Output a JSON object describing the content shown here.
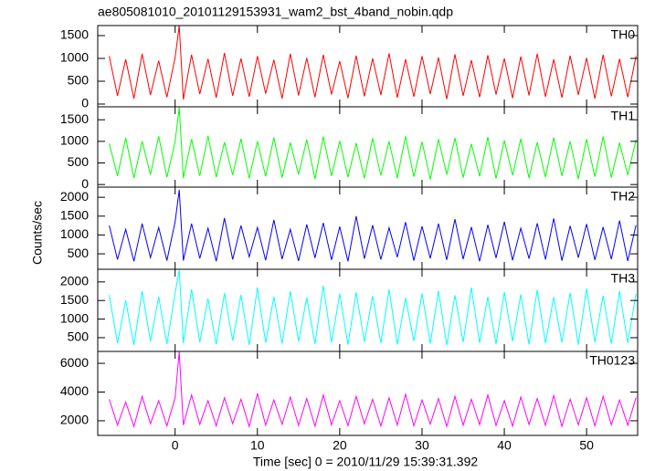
{
  "chart_data": {
    "type": "line",
    "title": "ae805081010_20101129153931_wam2_bst_4band_nobin.qdp",
    "xlabel": "Time [sec] 0 = 2010/11/29 15:39:31.392",
    "ylabel": "Counts/sec",
    "xlim": [
      -9.4,
      56.2
    ],
    "xticks": [
      0,
      10,
      20,
      30,
      40,
      50
    ],
    "x": [
      -8,
      -7,
      -6,
      -5,
      -4,
      -3,
      -2,
      -1,
      0,
      0.5,
      1,
      2,
      3,
      4,
      5,
      6,
      7,
      8,
      9,
      10,
      11,
      12,
      13,
      14,
      15,
      16,
      17,
      18,
      19,
      20,
      21,
      22,
      23,
      24,
      25,
      26,
      27,
      28,
      29,
      30,
      31,
      32,
      33,
      34,
      35,
      36,
      37,
      38,
      39,
      40,
      41,
      42,
      43,
      44,
      45,
      46,
      47,
      48,
      49,
      50,
      51,
      52,
      53,
      54,
      55,
      56
    ],
    "series": [
      {
        "name": "TH0",
        "color": "#ff0000",
        "ylim": [
          -60,
          1720
        ],
        "yticks": [
          0,
          500,
          1000,
          1500
        ],
        "values": [
          1050,
          180,
          980,
          120,
          1100,
          200,
          950,
          150,
          1020,
          1720,
          100,
          1080,
          220,
          990,
          140,
          1120,
          180,
          1000,
          160,
          1050,
          230,
          970,
          120,
          1100,
          190,
          1010,
          150,
          1080,
          210,
          940,
          130,
          1060,
          170,
          1000,
          200,
          1110,
          140,
          980,
          160,
          1050,
          220,
          1020,
          110,
          1090,
          180,
          960,
          150,
          1070,
          210,
          1000,
          130,
          1040,
          190,
          1100,
          160,
          980,
          140,
          1060,
          200,
          1010,
          120,
          1080,
          170,
          990,
          150,
          1050
        ]
      },
      {
        "name": "TH1",
        "color": "#00ff00",
        "ylim": [
          -60,
          1800
        ],
        "yticks": [
          0,
          500,
          1000,
          1500
        ],
        "values": [
          950,
          200,
          1080,
          150,
          1000,
          230,
          1120,
          170,
          990,
          1790,
          150,
          1050,
          200,
          1130,
          170,
          980,
          220,
          1060,
          140,
          1000,
          190,
          1090,
          160,
          970,
          230,
          1040,
          130,
          1110,
          200,
          1010,
          170,
          960,
          140,
          1070,
          210,
          1000,
          150,
          1120,
          180,
          990,
          120,
          1050,
          230,
          1080,
          160,
          940,
          190,
          1100,
          140,
          1020,
          210,
          1060,
          150,
          980,
          170,
          1090,
          200,
          1000,
          130,
          1050,
          180,
          1110,
          160,
          970,
          220,
          1030
        ]
      },
      {
        "name": "TH2",
        "color": "#0000ff",
        "ylim": [
          90,
          2270
        ],
        "yticks": [
          500,
          1000,
          1500,
          2000
        ],
        "values": [
          1250,
          350,
          1150,
          300,
          1300,
          400,
          1200,
          320,
          1350,
          2200,
          320,
          1300,
          380,
          1180,
          300,
          1450,
          350,
          1250,
          420,
          1200,
          330,
          1400,
          360,
          1150,
          310,
          1280,
          390,
          1320,
          340,
          1220,
          300,
          1500,
          370,
          1260,
          350,
          1190,
          410,
          1340,
          320,
          1230,
          380,
          1300,
          340,
          1420,
          360,
          1210,
          300,
          1270,
          390,
          1350,
          330,
          1180,
          370,
          1310,
          350,
          1440,
          320,
          1240,
          400,
          1290,
          340,
          1210,
          360,
          1380,
          310,
          1260
        ]
      },
      {
        "name": "TH3",
        "color": "#00ffff",
        "ylim": [
          130,
          2340
        ],
        "yticks": [
          500,
          1000,
          1500,
          2000
        ],
        "values": [
          1650,
          350,
          1500,
          300,
          1750,
          400,
          1600,
          330,
          1700,
          2320,
          350,
          1800,
          380,
          1550,
          320,
          1700,
          420,
          1650,
          300,
          1850,
          360,
          1600,
          340,
          1750,
          400,
          1580,
          330,
          1900,
          370,
          1680,
          310,
          1720,
          390,
          1620,
          350,
          1800,
          320,
          1570,
          410,
          1690,
          340,
          1760,
          300,
          1640,
          380,
          1850,
          360,
          1600,
          330,
          1730,
          400,
          1660,
          320,
          1790,
          350,
          1590,
          370,
          1710,
          310,
          1820,
          380,
          1630,
          340,
          1750,
          360,
          1680
        ]
      },
      {
        "name": "TH0123",
        "color": "#ff00ff",
        "ylim": [
          980,
          6830
        ],
        "yticks": [
          2000,
          4000,
          6000
        ],
        "values": [
          3500,
          1700,
          3300,
          1600,
          3700,
          1800,
          3400,
          1650,
          3600,
          6800,
          1700,
          3800,
          1750,
          3400,
          1650,
          3600,
          1800,
          3500,
          1600,
          3900,
          1700,
          3450,
          1750,
          3650,
          1680,
          3550,
          1620,
          3800,
          1720,
          3400,
          1660,
          3700,
          1780,
          3500,
          1640,
          3600,
          1700,
          3850,
          1650,
          3450,
          1760,
          3550,
          1600,
          3700,
          1690,
          3500,
          1730,
          3800,
          1670,
          3400,
          1620,
          3650,
          1740,
          3550,
          1680,
          3750,
          1600,
          3500,
          1710,
          3600,
          1650,
          3700,
          1720,
          3450,
          1690,
          3600
        ]
      }
    ]
  }
}
